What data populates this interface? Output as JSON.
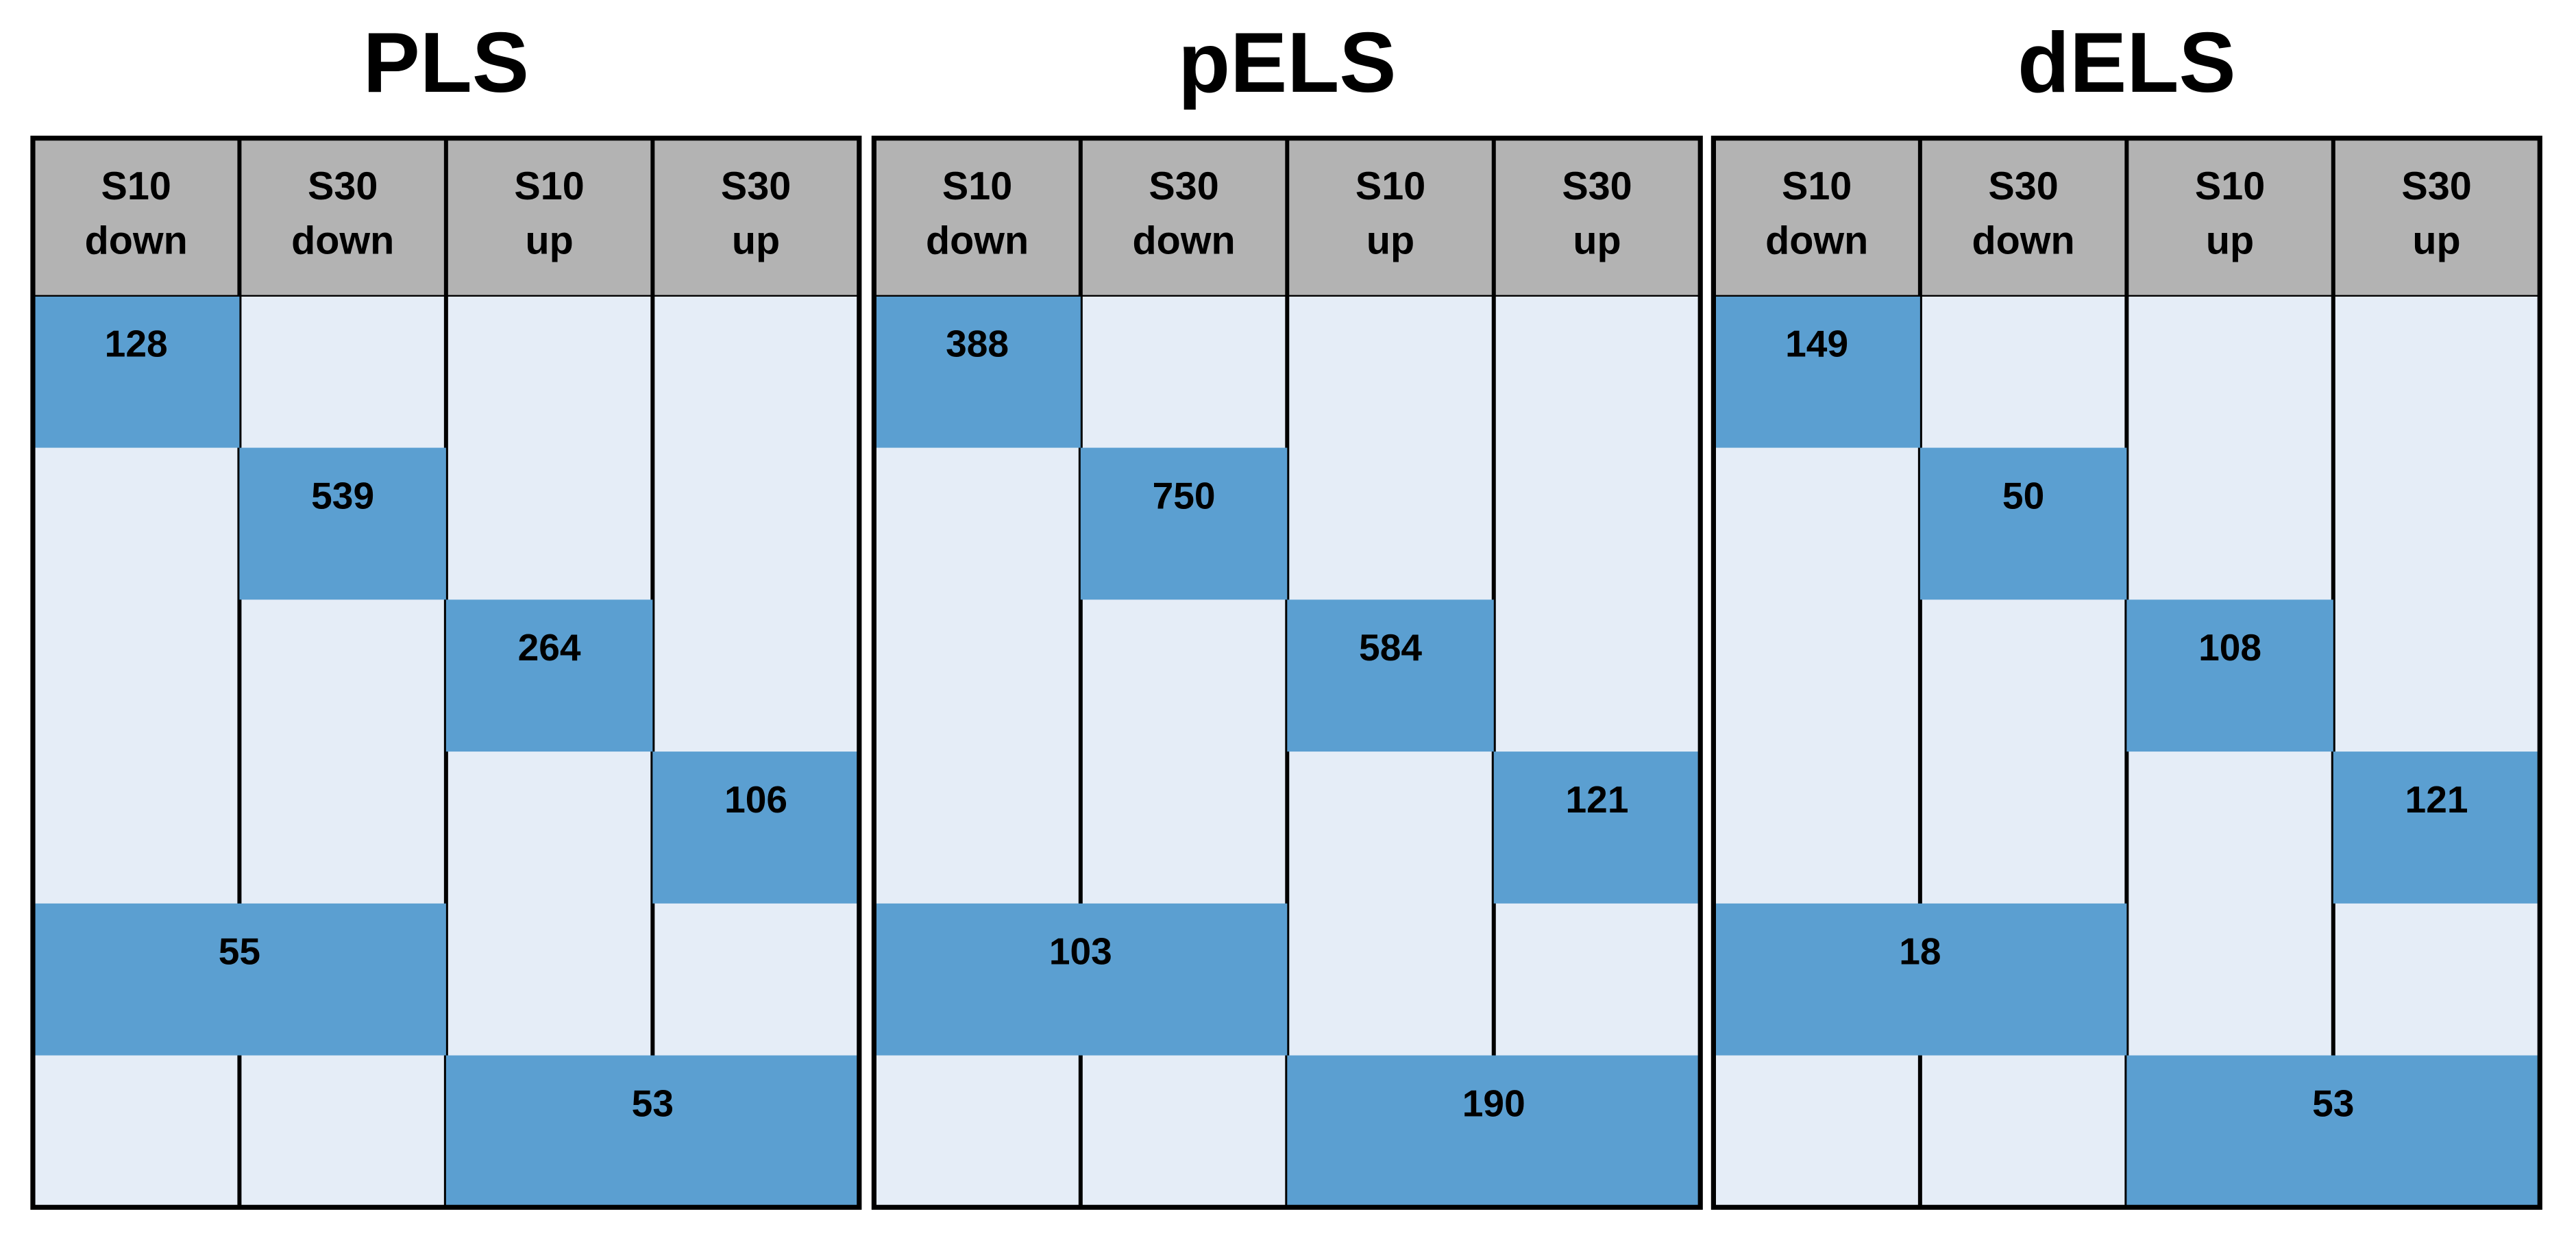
{
  "panels": [
    {
      "title": "PLS",
      "columns": [
        [
          "S10",
          "down"
        ],
        [
          "S30",
          "down"
        ],
        [
          "S10",
          "up"
        ],
        [
          "S30",
          "up"
        ]
      ],
      "values": [
        128,
        539,
        264,
        106,
        55,
        53
      ]
    },
    {
      "title": "pELS",
      "columns": [
        [
          "S10",
          "down"
        ],
        [
          "S30",
          "down"
        ],
        [
          "S10",
          "up"
        ],
        [
          "S30",
          "up"
        ]
      ],
      "values": [
        388,
        750,
        584,
        121,
        103,
        190
      ]
    },
    {
      "title": "dELS",
      "columns": [
        [
          "S10",
          "down"
        ],
        [
          "S30",
          "down"
        ],
        [
          "S10",
          "up"
        ],
        [
          "S30",
          "up"
        ]
      ],
      "values": [
        149,
        50,
        108,
        121,
        18,
        53
      ]
    }
  ]
}
